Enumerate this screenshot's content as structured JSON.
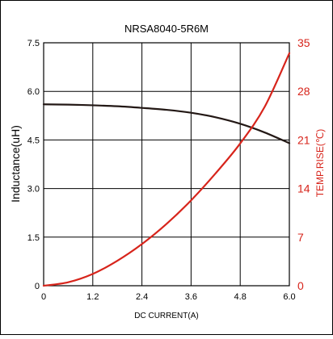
{
  "chart_data": {
    "type": "line",
    "title": "NRSA8040-5R6M",
    "xlabel": "DC CURRENT(A)",
    "ylabel": "Inductance(uH)",
    "y2label": "TEMP.RISE(℃)",
    "xlim": [
      0,
      6.0
    ],
    "ylim": [
      0,
      7.5
    ],
    "y2lim": [
      0,
      35
    ],
    "x_ticks": [
      "0",
      "1.2",
      "2.4",
      "3.6",
      "4.8",
      "6.0"
    ],
    "y_ticks": [
      "0",
      "1.5",
      "3.0",
      "4.5",
      "6.0",
      "7.5"
    ],
    "y2_ticks": [
      "0",
      "7",
      "14",
      "21",
      "28",
      "35"
    ],
    "grid": true,
    "series": [
      {
        "axis": "left",
        "color": "#231815",
        "x": [
          0,
          0.6,
          1.2,
          1.8,
          2.4,
          3.0,
          3.6,
          4.2,
          4.8,
          5.4,
          6.0
        ],
        "values": [
          5.6,
          5.59,
          5.57,
          5.54,
          5.49,
          5.43,
          5.34,
          5.2,
          5.0,
          4.73,
          4.4
        ]
      },
      {
        "axis": "right",
        "color": "#d7241b",
        "x": [
          0,
          0.6,
          1.2,
          1.8,
          2.4,
          3.0,
          3.6,
          4.2,
          4.8,
          5.4,
          6.0
        ],
        "values": [
          0,
          0.5,
          1.7,
          3.6,
          6.0,
          8.9,
          12.3,
          16.2,
          20.5,
          25.8,
          33.5
        ]
      }
    ]
  }
}
